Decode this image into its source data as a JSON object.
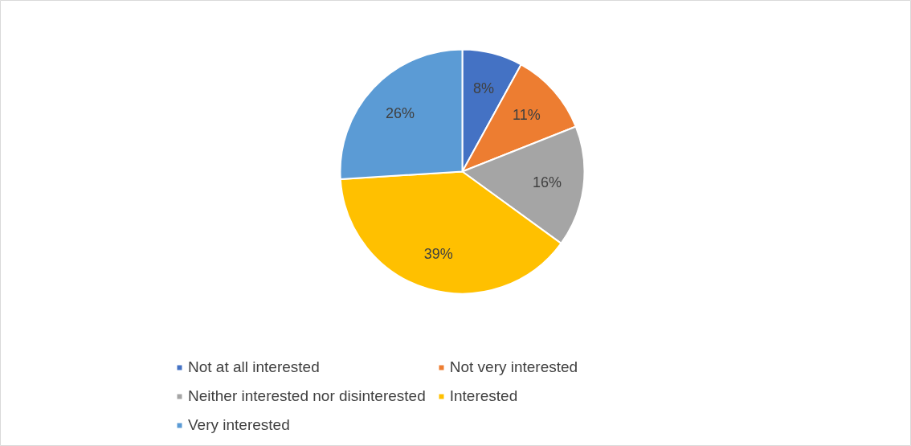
{
  "chart_data": {
    "type": "pie",
    "categories": [
      "Not at all interested",
      "Not very interested",
      "Neither interested nor disinterested",
      "Interested",
      "Very interested"
    ],
    "values": [
      8,
      11,
      16,
      39,
      26
    ],
    "colors": [
      "#4472c4",
      "#ed7d31",
      "#a5a5a5",
      "#ffc000",
      "#5b9bd5"
    ],
    "value_labels": [
      "8%",
      "11%",
      "16%",
      "39%",
      "26%"
    ],
    "legend": "bottom"
  }
}
